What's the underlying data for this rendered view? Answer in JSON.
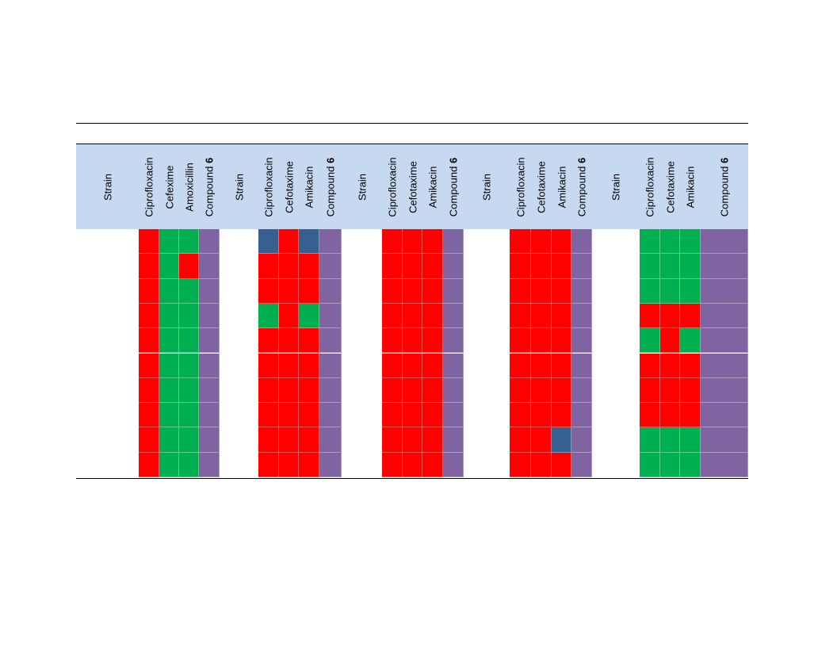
{
  "colors": {
    "header_bg": "#c6d9f1",
    "R": "#ff0000",
    "S": "#00b050",
    "I": "#376092",
    "P": "#8064a2",
    "W": "#ffffff"
  },
  "groups": [
    {
      "columns": [
        {
          "text": "Strain",
          "bold": ""
        },
        {
          "text": "Ciprofloxacin",
          "bold": ""
        },
        {
          "text": "Cefexime",
          "bold": ""
        },
        {
          "text": "Amoxicillin",
          "bold": ""
        },
        {
          "text": "Compound ",
          "bold": "6"
        }
      ],
      "rows": [
        [
          "R",
          "S",
          "S",
          "P"
        ],
        [
          "R",
          "S",
          "R",
          "P"
        ],
        [
          "R",
          "S",
          "S",
          "P"
        ],
        [
          "R",
          "S",
          "S",
          "P"
        ],
        [
          "R",
          "S",
          "S",
          "P"
        ],
        [
          "R",
          "S",
          "S",
          "P"
        ],
        [
          "R",
          "S",
          "S",
          "P"
        ],
        [
          "R",
          "S",
          "S",
          "P"
        ],
        [
          "R",
          "S",
          "S",
          "P"
        ],
        [
          "R",
          "S",
          "S",
          "P"
        ]
      ]
    },
    {
      "columns": [
        {
          "text": "Strain",
          "bold": ""
        },
        {
          "text": "Ciprofloxacin",
          "bold": ""
        },
        {
          "text": "Cefotaxime",
          "bold": ""
        },
        {
          "text": "Amikacin",
          "bold": ""
        },
        {
          "text": "Compound ",
          "bold": "6"
        }
      ],
      "rows": [
        [
          "I",
          "R",
          "I",
          "P"
        ],
        [
          "R",
          "R",
          "R",
          "P"
        ],
        [
          "R",
          "R",
          "R",
          "P"
        ],
        [
          "S",
          "R",
          "S",
          "P"
        ],
        [
          "R",
          "R",
          "R",
          "P"
        ],
        [
          "R",
          "R",
          "R",
          "P"
        ],
        [
          "R",
          "R",
          "R",
          "P"
        ],
        [
          "R",
          "R",
          "R",
          "P"
        ],
        [
          "R",
          "R",
          "R",
          "P"
        ],
        [
          "R",
          "R",
          "R",
          "P"
        ]
      ]
    },
    {
      "columns": [
        {
          "text": "Strain",
          "bold": ""
        },
        {
          "text": "Ciprofloxacin",
          "bold": ""
        },
        {
          "text": "Cefotaxime",
          "bold": ""
        },
        {
          "text": "Amikacin",
          "bold": ""
        },
        {
          "text": "Compound ",
          "bold": "6"
        }
      ],
      "rows": [
        [
          "R",
          "R",
          "R",
          "P"
        ],
        [
          "R",
          "R",
          "R",
          "P"
        ],
        [
          "R",
          "R",
          "R",
          "P"
        ],
        [
          "R",
          "R",
          "R",
          "P"
        ],
        [
          "R",
          "R",
          "R",
          "P"
        ],
        [
          "R",
          "R",
          "R",
          "P"
        ],
        [
          "R",
          "R",
          "R",
          "P"
        ],
        [
          "R",
          "R",
          "R",
          "P"
        ],
        [
          "R",
          "R",
          "R",
          "P"
        ],
        [
          "R",
          "R",
          "R",
          "P"
        ]
      ]
    },
    {
      "columns": [
        {
          "text": "Strain",
          "bold": ""
        },
        {
          "text": "Ciprofloxacin",
          "bold": ""
        },
        {
          "text": "Cefotaxime",
          "bold": ""
        },
        {
          "text": "Amikacin",
          "bold": ""
        },
        {
          "text": "Compound ",
          "bold": "6"
        }
      ],
      "rows": [
        [
          "R",
          "R",
          "R",
          "P"
        ],
        [
          "R",
          "R",
          "R",
          "P"
        ],
        [
          "R",
          "R",
          "R",
          "P"
        ],
        [
          "R",
          "R",
          "R",
          "P"
        ],
        [
          "R",
          "R",
          "R",
          "P"
        ],
        [
          "R",
          "R",
          "R",
          "P"
        ],
        [
          "R",
          "R",
          "R",
          "P"
        ],
        [
          "R",
          "R",
          "R",
          "P"
        ],
        [
          "R",
          "R",
          "I",
          "P"
        ],
        [
          "R",
          "R",
          "R",
          "P"
        ]
      ]
    },
    {
      "columns": [
        {
          "text": "Strain",
          "bold": ""
        },
        {
          "text": "Ciprofloxacin",
          "bold": ""
        },
        {
          "text": "Cefotaxime",
          "bold": ""
        },
        {
          "text": "Amikacin",
          "bold": ""
        },
        {
          "text": "Compound ",
          "bold": "6"
        }
      ],
      "rows": [
        [
          "S",
          "S",
          "S",
          "P"
        ],
        [
          "S",
          "S",
          "S",
          "P"
        ],
        [
          "S",
          "S",
          "S",
          "P"
        ],
        [
          "R",
          "R",
          "R",
          "P"
        ],
        [
          "S",
          "R",
          "S",
          "P"
        ],
        [
          "R",
          "R",
          "R",
          "P"
        ],
        [
          "R",
          "R",
          "R",
          "P"
        ],
        [
          "R",
          "R",
          "R",
          "P"
        ],
        [
          "S",
          "S",
          "S",
          "P"
        ],
        [
          "S",
          "S",
          "S",
          "P"
        ]
      ]
    }
  ]
}
